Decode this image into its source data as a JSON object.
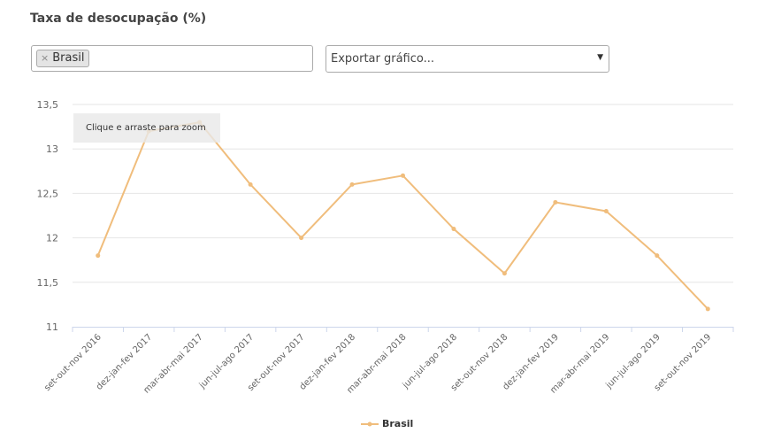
{
  "header": {
    "title": "Taxa de desocupação (%)"
  },
  "filter": {
    "tags": [
      {
        "label": "Brasil",
        "remove_symbol": "×"
      }
    ]
  },
  "export": {
    "placeholder": "Exportar gráfico...",
    "arrow": "▼"
  },
  "zoom_hint": "Clique e arraste para zoom",
  "colors": {
    "series": "#f0bd7c",
    "grid": "#e6e6e6",
    "axis": "#ccd6eb",
    "text": "#666666"
  },
  "chart_data": {
    "type": "line",
    "title": "Taxa de desocupação (%)",
    "x": [
      "set-out-nov 2016",
      "dez-jan-fev 2017",
      "mar-abr-mai 2017",
      "jun-jul-ago 2017",
      "set-out-nov 2017",
      "dez-jan-fev 2018",
      "mar-abr-mai 2018",
      "jun-jul-ago 2018",
      "set-out-nov 2018",
      "dez-jan-fev 2019",
      "mar-abr-mai 2019",
      "jun-jul-ago 2019",
      "set-out-nov 2019"
    ],
    "series": [
      {
        "name": "Brasil",
        "values": [
          11.8,
          13.2,
          13.3,
          12.6,
          12.0,
          12.6,
          12.7,
          12.1,
          11.6,
          12.4,
          12.3,
          11.8,
          11.2
        ]
      }
    ],
    "yticks": [
      "13,5",
      "13",
      "12,5",
      "12",
      "11,5",
      "11"
    ],
    "ylim": [
      11,
      13.5
    ],
    "grid": true,
    "legend": "bottom-center"
  }
}
